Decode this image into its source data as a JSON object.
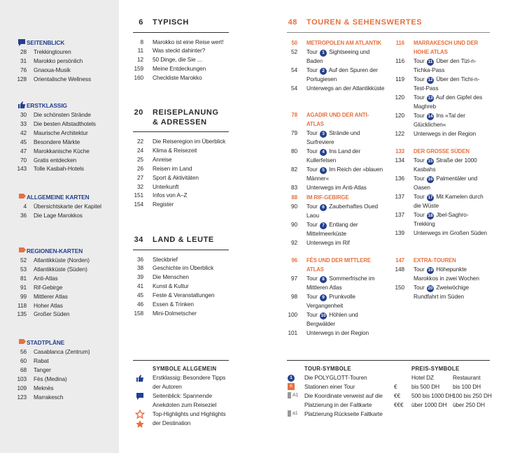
{
  "sidebar": [
    {
      "title": "SEITENBLICK",
      "entries": [
        {
          "page": 28,
          "text": "Trekkingtouren"
        },
        {
          "page": 31,
          "text": "Marokko persönlich"
        },
        {
          "page": 76,
          "text": "Gnaoua-Musik"
        },
        {
          "page": 128,
          "text": "Orientalische Wellness"
        }
      ]
    },
    {
      "title": "ERSTKLASSIG",
      "entries": [
        {
          "page": 30,
          "text": "Die schönsten Strände"
        },
        {
          "page": 33,
          "text": "Die besten Altstadthotels"
        },
        {
          "page": 42,
          "text": "Maurische Architektur"
        },
        {
          "page": 45,
          "text": "Besondere Märkte"
        },
        {
          "page": 47,
          "text": "Marokkanische Küche"
        },
        {
          "page": 70,
          "text": "Gratis entdecken"
        },
        {
          "page": 143,
          "text": "Tolle Kasbah-Hotels"
        }
      ]
    },
    {
      "title": "ALLGEMEINE KARTEN",
      "entries": [
        {
          "page": 4,
          "text": "Übersichtskarte der Kapitel"
        },
        {
          "page": 36,
          "text": "Die Lage Marokkos"
        }
      ]
    },
    {
      "title": "REGIONEN-KARTEN",
      "entries": [
        {
          "page": 52,
          "text": "Atlantikküste (Norden)"
        },
        {
          "page": 53,
          "text": "Atlantikküste (Süden)"
        },
        {
          "page": 81,
          "text": "Anti-Atlas"
        },
        {
          "page": 91,
          "text": "Rif-Gebirge"
        },
        {
          "page": 99,
          "text": "Mittlerer Atlas"
        },
        {
          "page": 118,
          "text": "Hoher Atlas"
        },
        {
          "page": 135,
          "text": "Großer Süden"
        }
      ]
    },
    {
      "title": "STADTPLÄNE",
      "entries": [
        {
          "page": 56,
          "text": "Casablanca (Zentrum)"
        },
        {
          "page": 60,
          "text": "Rabat"
        },
        {
          "page": 68,
          "text": "Tanger"
        },
        {
          "page": 103,
          "text": "Fès (Medina)"
        },
        {
          "page": 109,
          "text": "Meknès"
        },
        {
          "page": 123,
          "text": "Marrakesch"
        }
      ]
    }
  ],
  "chapters": [
    {
      "page": 6,
      "title": "TYPISCH",
      "entries": [
        {
          "page": 8,
          "text": "Marokko ist eine Reise wert!"
        },
        {
          "page": 11,
          "text": "Was steckt dahinter?"
        },
        {
          "page": 12,
          "text": "50 Dinge, die Sie ..."
        },
        {
          "page": 159,
          "text": "Meine Entdeckungen"
        },
        {
          "page": 160,
          "text": "Checkliste Marokko"
        }
      ]
    },
    {
      "page": 20,
      "title": "REISEPLANUNG & ADRESSEN",
      "entries": [
        {
          "page": 22,
          "text": "Die Reiseregion im Überblick"
        },
        {
          "page": 24,
          "text": "Klima & Reisezeit"
        },
        {
          "page": 25,
          "text": "Anreise"
        },
        {
          "page": 26,
          "text": "Reisen im Land"
        },
        {
          "page": 27,
          "text": "Sport & Aktivitäten"
        },
        {
          "page": 32,
          "text": "Unterkunft"
        },
        {
          "page": 151,
          "text": "Infos von A–Z"
        },
        {
          "page": 154,
          "text": "Register"
        }
      ]
    },
    {
      "page": 34,
      "title": "LAND & LEUTE",
      "entries": [
        {
          "page": 36,
          "text": "Steckbrief"
        },
        {
          "page": 38,
          "text": "Geschichte im Überblick"
        },
        {
          "page": 39,
          "text": "Die Menschen"
        },
        {
          "page": 41,
          "text": "Kunst & Kultur"
        },
        {
          "page": 45,
          "text": "Feste & Veranstaltungen"
        },
        {
          "page": 46,
          "text": "Essen & Trinken"
        },
        {
          "page": 158,
          "text": "Mini-Dolmetscher"
        }
      ]
    }
  ],
  "touren": {
    "page": 48,
    "title": "TOUREN & SEHENSWERTES",
    "sections": [
      {
        "page": 50,
        "title": "METROPOLEN AM ATLANTIK",
        "entries": [
          {
            "page": 52,
            "prefix": "Tour",
            "num": 1,
            "text": "Sightseeing und Baden"
          },
          {
            "page": 54,
            "prefix": "Tour",
            "num": 2,
            "text": "Auf den Spuren der Portugiesen"
          },
          {
            "page": 54,
            "text": "Unterwegs an der Atlantikküste"
          }
        ]
      },
      {
        "page": 78,
        "title": "AGADIR UND DER ANTI-ATLAS",
        "entries": [
          {
            "page": 79,
            "prefix": "Tour",
            "num": 3,
            "text": "Strände und Surfreviere"
          },
          {
            "page": 80,
            "prefix": "Tour",
            "num": 4,
            "text": "Ins Land der Kullerfelsen"
          },
          {
            "page": 82,
            "prefix": "Tour",
            "num": 5,
            "text": "Im Reich der »blauen Männer«"
          },
          {
            "page": 83,
            "text": "Unterwegs im Anti-Atlas"
          }
        ]
      },
      {
        "page": 88,
        "title": "IM RIF-GEBIRGE",
        "entries": [
          {
            "page": 90,
            "prefix": "Tour",
            "num": 6,
            "text": "Zauberhaftes Oued Laou"
          },
          {
            "page": 90,
            "prefix": "Tour",
            "num": 7,
            "text": "Entlang der Mittelmeerküste"
          },
          {
            "page": 92,
            "text": "Unterwegs im Rif"
          }
        ]
      },
      {
        "page": 96,
        "title": "FÈS UND DER MITTLERE ATLAS",
        "entries": [
          {
            "page": 97,
            "prefix": "Tour",
            "num": 8,
            "text": "Sommerfrische im Mittleren Atlas"
          },
          {
            "page": 98,
            "prefix": "Tour",
            "num": 9,
            "text": "Prunkvolle Vergangenheit"
          },
          {
            "page": 100,
            "prefix": "Tour",
            "num": 10,
            "text": "Höhlen und Bergwälder"
          },
          {
            "page": 101,
            "text": "Unterwegs in der Region"
          }
        ]
      },
      {
        "page": 116,
        "title": "MARRAKESCH UND DER HOHE ATLAS",
        "entries": [
          {
            "page": 116,
            "prefix": "Tour",
            "num": 11,
            "text": "Über den Tizi-n-Tichka-Pass"
          },
          {
            "page": 119,
            "prefix": "Tour",
            "num": 12,
            "text": "Über den Tichi-n-Test-Pass"
          },
          {
            "page": 120,
            "prefix": "Tour",
            "num": 13,
            "text": "Auf den Gipfel des Maghreb"
          },
          {
            "page": 120,
            "prefix": "Tour",
            "num": 14,
            "text": "Ins »Tal der Glücklichen«"
          },
          {
            "page": 122,
            "text": "Unterwegs in der Region"
          }
        ]
      },
      {
        "page": 133,
        "title": "DER GROSSE SÜDEN",
        "entries": [
          {
            "page": 134,
            "prefix": "Tour",
            "num": 15,
            "text": "Straße der 1000 Kasbahs"
          },
          {
            "page": 136,
            "prefix": "Tour",
            "num": 16,
            "text": "Palmentäler und Oasen"
          },
          {
            "page": 137,
            "prefix": "Tour",
            "num": 17,
            "text": "Mit Kamelen durch die Wüste"
          },
          {
            "page": 137,
            "prefix": "Tour",
            "num": 18,
            "text": "Jbel-Saghro-Trekking"
          },
          {
            "page": 139,
            "text": "Unterwegs im Großen Süden"
          }
        ]
      },
      {
        "page": 147,
        "title": "EXTRA-TOUREN",
        "entries": [
          {
            "page": 148,
            "prefix": "Tour",
            "num": 19,
            "text": "Höhepunkte Marokkos in zwei Wochen"
          },
          {
            "page": 150,
            "prefix": "Tour",
            "num": 20,
            "text": "Zweiwöchige Rundfahrt im Süden"
          }
        ]
      }
    ]
  },
  "legend": {
    "general": {
      "title": "SYMBOLE ALLGEMEIN",
      "items": [
        "Erstklassig: Besondere Tipps der Autoren",
        "Seitenblick: Spannende Anekdoten zum Reiseziel",
        "Top-Highlights und Highlights der Destination"
      ]
    },
    "tour": {
      "title": "TOUR-SYMBOLE",
      "items": [
        {
          "symbol": "1",
          "text": "Die POLYGLOTT-Touren"
        },
        {
          "symbol": "6",
          "text": "Stationen einer Tour"
        },
        {
          "symbol": "A1",
          "text": "Die Koordinate verweist auf die Platzierung in der Faltkarte"
        },
        {
          "symbol": "a1",
          "text": "Platzierung Rückseite Faltkarte"
        }
      ]
    },
    "price": {
      "title": "PREIS-SYMBOLE",
      "header": [
        "Hotel DZ",
        "Restaurant"
      ],
      "rows": [
        [
          "€",
          "bis 500 DH",
          "bis 100 DH"
        ],
        [
          "€€",
          "500 bis 1000 DH",
          "100 bis 250 DH"
        ],
        [
          "€€€",
          "über 1000 DH",
          "über 250 DH"
        ]
      ]
    }
  }
}
